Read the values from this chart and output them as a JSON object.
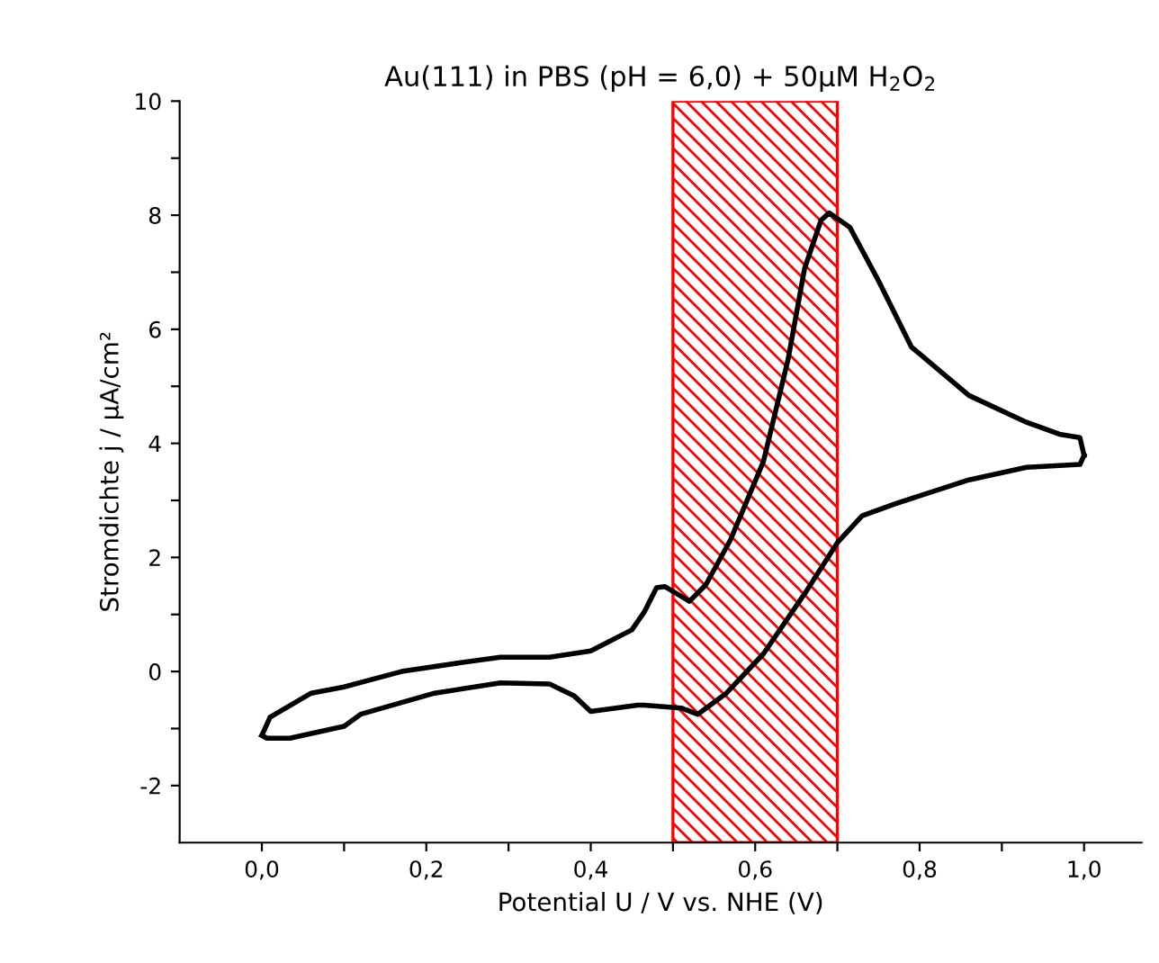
{
  "chart_data": {
    "type": "line",
    "title": "Au(111) in PBS (pH = 6,0) + 50µM H$_{2}$O$_{2}$",
    "xlabel": "Potential U / V vs. NHE (V)",
    "ylabel": "Stromdichte j / µA/cm²",
    "series": [
      {
        "color": "#000000",
        "x": [
          0.0,
          0.01,
          0.06,
          0.1,
          0.17,
          0.24,
          0.29,
          0.35,
          0.4,
          0.45,
          0.465,
          0.48,
          0.49,
          0.52,
          0.54,
          0.57,
          0.61,
          0.64,
          0.66,
          0.68,
          0.69,
          0.715,
          0.75,
          0.79,
          0.86,
          0.93,
          0.97,
          0.995,
          1.0
        ],
        "values": [
          -1.12,
          -0.8,
          -0.38,
          -0.27,
          0.0,
          0.15,
          0.25,
          0.25,
          0.36,
          0.73,
          1.04,
          1.47,
          1.49,
          1.23,
          1.52,
          2.31,
          3.68,
          5.47,
          7.06,
          7.91,
          8.04,
          7.79,
          6.85,
          5.69,
          4.84,
          4.37,
          4.16,
          4.1,
          3.79
        ]
      },
      {
        "color": "#000000",
        "x": [
          1.0,
          0.995,
          0.93,
          0.86,
          0.77,
          0.73,
          0.7,
          0.66,
          0.61,
          0.565,
          0.53,
          0.51,
          0.465,
          0.457,
          0.4,
          0.38,
          0.35,
          0.29,
          0.21,
          0.12,
          0.1,
          0.034,
          0.006,
          0.0
        ],
        "values": [
          3.79,
          3.63,
          3.58,
          3.36,
          2.94,
          2.73,
          2.26,
          1.36,
          0.31,
          -0.38,
          -0.75,
          -0.64,
          -0.59,
          -0.59,
          -0.7,
          -0.43,
          -0.22,
          -0.2,
          -0.38,
          -0.75,
          -0.96,
          -1.17,
          -1.17,
          -1.12
        ]
      }
    ],
    "bands": [
      {
        "axis": "x",
        "from": 0.5,
        "to": 0.7,
        "color": "#ff0000"
      }
    ],
    "xlim": [
      -0.1,
      1.07
    ],
    "ylim": [
      -3,
      10
    ],
    "xticks": [
      {
        "value": 0.0,
        "label": "0,0"
      },
      {
        "value": 0.1,
        "label": null
      },
      {
        "value": 0.2,
        "label": "0,2"
      },
      {
        "value": 0.3,
        "label": null
      },
      {
        "value": 0.4,
        "label": "0,4"
      },
      {
        "value": 0.5,
        "label": null
      },
      {
        "value": 0.6,
        "label": "0,6"
      },
      {
        "value": 0.7,
        "label": null
      },
      {
        "value": 0.8,
        "label": "0,8"
      },
      {
        "value": 0.9,
        "label": null
      },
      {
        "value": 1.0,
        "label": "1,0"
      }
    ],
    "yticks": [
      -2,
      {
        "value": -1,
        "label": null
      },
      0,
      {
        "value": 1,
        "label": null
      },
      2,
      {
        "value": 3,
        "label": null
      },
      4,
      {
        "value": 5,
        "label": null
      },
      6,
      {
        "value": 7,
        "label": null
      },
      8,
      {
        "value": 9,
        "label": null
      },
      10
    ],
    "grid": false,
    "marker": "none",
    "line_style": "solid"
  }
}
